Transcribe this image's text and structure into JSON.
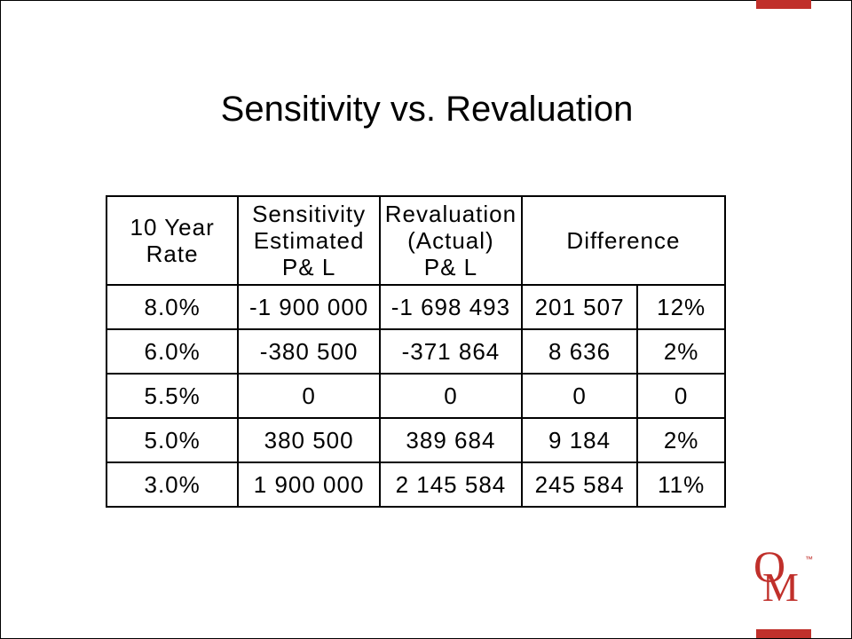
{
  "slide": {
    "title": "Sensitivity vs. Revaluation",
    "accent_color": "#c0302b",
    "logo_text": "OM",
    "logo_mark": "™"
  },
  "table": {
    "headers": [
      [
        "10 Year",
        "Rate"
      ],
      [
        "Sensitivity",
        "Estimated",
        "P& L"
      ],
      [
        "Revaluation",
        "(Actual)",
        "P& L"
      ],
      [
        "Difference"
      ]
    ],
    "rows": [
      [
        "8.0%",
        "-1 900 000",
        "-1 698 493",
        "201 507",
        "12%"
      ],
      [
        "6.0%",
        "-380 500",
        "-371 864",
        "8 636",
        "2%"
      ],
      [
        "5.5%",
        "0",
        "0",
        "0",
        "0"
      ],
      [
        "5.0%",
        "380 500",
        "389 684",
        "9 184",
        "2%"
      ],
      [
        "3.0%",
        "1 900 000",
        "2 145 584",
        "245 584",
        "11%"
      ]
    ]
  }
}
